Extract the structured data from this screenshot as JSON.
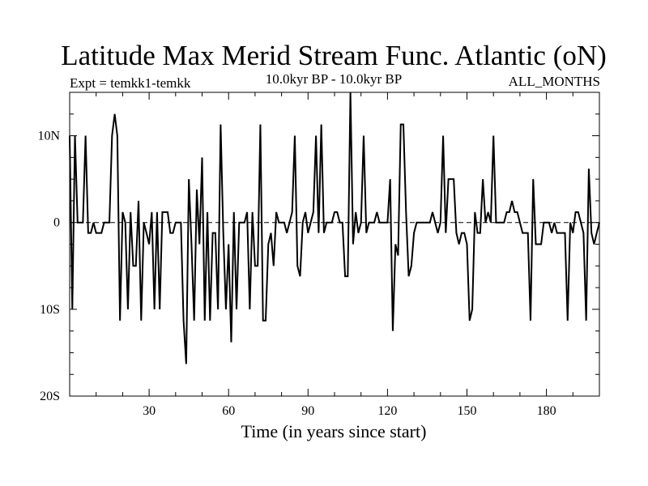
{
  "chart_data": {
    "type": "line",
    "title": "Latitude Max Merid Stream Func. Atlantic (oN)",
    "subtitle_left": "Expt = temkk1-temkk",
    "subtitle_center": "10.0kyr BP - 10.0kyr BP",
    "subtitle_right": "ALL_MONTHS",
    "xlabel": "Time (in years since start)",
    "ylabel": "",
    "xlim": [
      0,
      200
    ],
    "ylim": [
      -20,
      15
    ],
    "xticks": [
      30,
      60,
      90,
      120,
      150,
      180
    ],
    "xtick_labels": [
      "30",
      "60",
      "90",
      "120",
      "150",
      "180"
    ],
    "yticks": [
      10,
      0,
      -10,
      -20
    ],
    "ytick_labels": [
      "10N",
      "0",
      "10S",
      "20S"
    ],
    "zero_line": "dashed",
    "grid": false,
    "series": [
      {
        "color": "#000000",
        "x": [
          0,
          1,
          2,
          3,
          4,
          5,
          6,
          7,
          8,
          9,
          10,
          11,
          12,
          13,
          14,
          15,
          16,
          17,
          18,
          19,
          20,
          21,
          22,
          23,
          24,
          25,
          26,
          27,
          28,
          29,
          30,
          31,
          32,
          33,
          34,
          35,
          36,
          37,
          38,
          39,
          40,
          41,
          42,
          43,
          44,
          45,
          46,
          47,
          48,
          49,
          50,
          51,
          52,
          53,
          54,
          55,
          56,
          57,
          58,
          59,
          60,
          61,
          62,
          63,
          64,
          65,
          66,
          67,
          68,
          69,
          70,
          71,
          72,
          73,
          74,
          75,
          76,
          77,
          78,
          79,
          80,
          81,
          82,
          83,
          84,
          85,
          86,
          87,
          88,
          89,
          90,
          91,
          92,
          93,
          94,
          95,
          96,
          97,
          98,
          99,
          100,
          101,
          102,
          103,
          104,
          105,
          106,
          107,
          108,
          109,
          110,
          111,
          112,
          113,
          114,
          115,
          116,
          117,
          118,
          119,
          120,
          121,
          122,
          123,
          124,
          125,
          126,
          127,
          128,
          129,
          130,
          131,
          132,
          133,
          134,
          135,
          136,
          137,
          138,
          139,
          140,
          141,
          142,
          143,
          144,
          145,
          146,
          147,
          148,
          149,
          150,
          151,
          152,
          153,
          154,
          155,
          156,
          157,
          158,
          159,
          160,
          161,
          162,
          163,
          164,
          165,
          166,
          167,
          168,
          169,
          170,
          171,
          172,
          173,
          174,
          175,
          176,
          177,
          178,
          179,
          180,
          181,
          182,
          183,
          184,
          185,
          186,
          187,
          188,
          189,
          190,
          191,
          192,
          193,
          194,
          195,
          196,
          197,
          198,
          199,
          200
        ],
        "values": [
          10,
          -10,
          10,
          0,
          0,
          0,
          10,
          -1.2,
          -1.2,
          0,
          -1.2,
          -1.2,
          -1.2,
          0,
          0,
          0,
          10,
          12.5,
          10,
          -11.3,
          1.2,
          0,
          -10,
          1.2,
          -5,
          -5,
          2.5,
          -11.3,
          0,
          -1.2,
          -2.5,
          1.2,
          -10,
          1.2,
          -10,
          1.2,
          1.2,
          1.2,
          -1.2,
          -1.2,
          0,
          0,
          0,
          -11.3,
          -16.3,
          5,
          -2.5,
          -11.3,
          3.8,
          -2.5,
          7.5,
          -11.3,
          1.2,
          -11.3,
          -1.2,
          -1.2,
          -10,
          11.3,
          -1.2,
          -10,
          -2.5,
          -13.8,
          1.2,
          -10,
          0,
          0,
          0,
          1.2,
          -10,
          1.2,
          -5,
          -5,
          11.3,
          -11.3,
          -11.3,
          -2.5,
          -1.2,
          -5,
          1.2,
          0,
          0,
          0,
          -1.2,
          0,
          1.2,
          10,
          -5,
          -6.2,
          0,
          1.2,
          -1.2,
          0,
          1.2,
          10,
          -1.2,
          11.3,
          -1.2,
          0,
          0,
          0,
          1.2,
          1.2,
          0,
          0,
          -6.2,
          -6.2,
          15,
          -2.5,
          1.2,
          -1.2,
          0,
          10,
          -1.2,
          0,
          0,
          0,
          1.2,
          0,
          0,
          0,
          0,
          5,
          -12.5,
          -2.5,
          -3.8,
          11.3,
          11.3,
          1.2,
          -6.2,
          -5,
          -1.2,
          0,
          0,
          0,
          0,
          0,
          0,
          1.2,
          0,
          -1.2,
          0,
          10,
          -1.2,
          5,
          5,
          5,
          -1.2,
          -2.5,
          -1.2,
          -1.2,
          -2.5,
          -11.3,
          -10,
          1.2,
          -1.2,
          -1.2,
          5,
          0,
          1.2,
          0,
          10,
          0,
          0,
          0,
          0,
          1.2,
          1.2,
          2.5,
          1.2,
          1.2,
          0,
          -1.2,
          -1.2,
          -1.2,
          -11.3,
          5,
          -2.5,
          -2.5,
          -2.5,
          0,
          0,
          0,
          -1.2,
          0,
          -1.2,
          -1.2,
          -1.2,
          -1.2,
          -11.3,
          0,
          -1.2,
          1.2,
          1.2,
          0,
          -1.2,
          -11.3,
          6.2,
          -1.2,
          -2.5,
          -1.2,
          0
        ]
      }
    ]
  }
}
